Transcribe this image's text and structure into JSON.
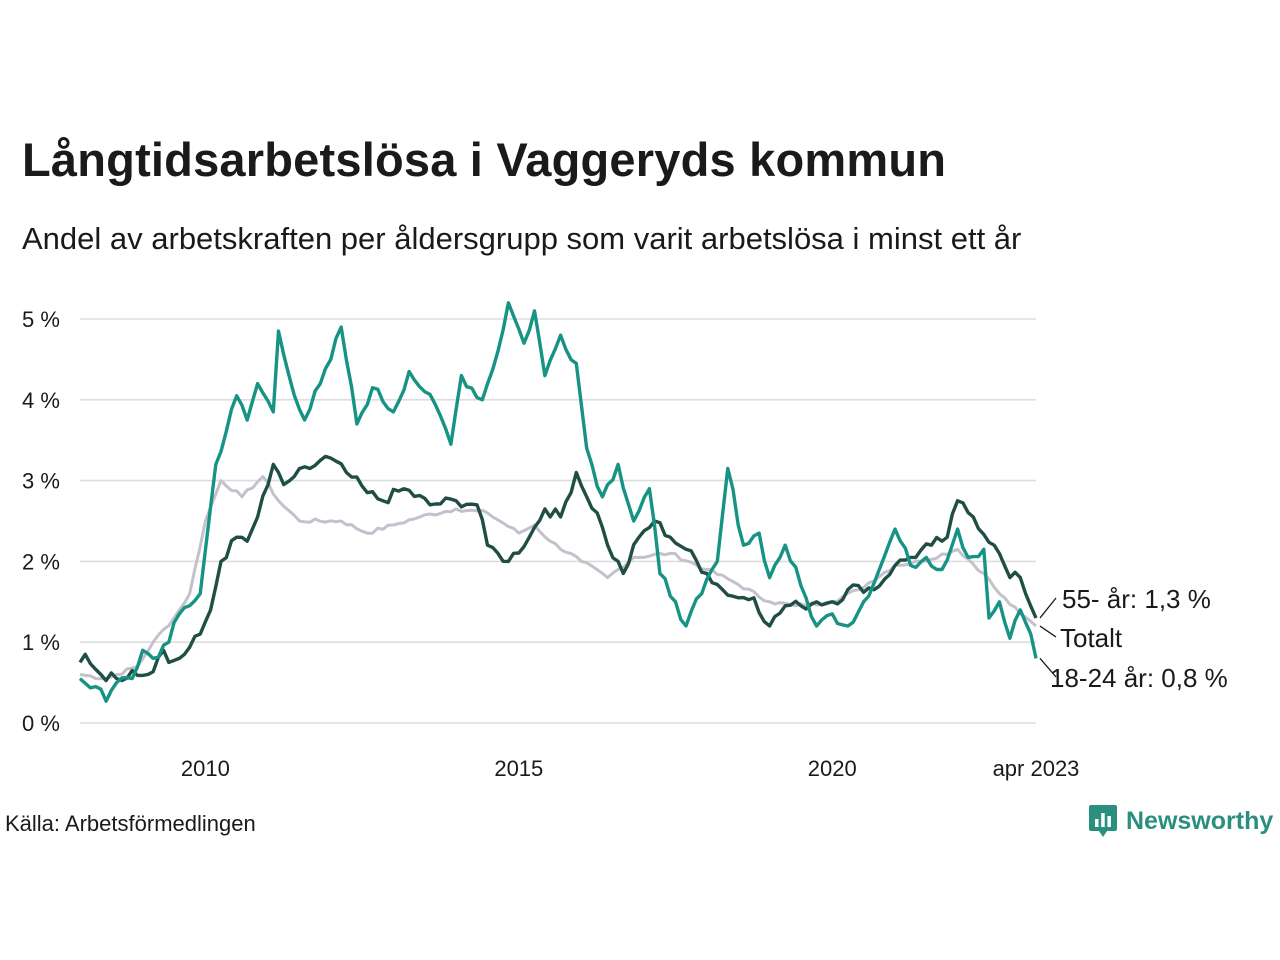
{
  "header": {
    "title": "Långtidsarbetslösa i Vaggeryds kommun",
    "subtitle": "Andel av arbetskraften per åldersgrupp som varit arbetslösa i minst ett år"
  },
  "footer": {
    "source": "Källa: Arbetsförmedlingen",
    "brand": "Newsworthy",
    "brand_icon": "bar-chart-icon",
    "brand_color": "#2a8f7f"
  },
  "chart_data": {
    "type": "line",
    "title": "Långtidsarbetslösa i Vaggeryds kommun",
    "subtitle": "Andel av arbetskraften per åldersgrupp som varit arbetslösa i minst ett år",
    "x_start": "2008-01",
    "x_end": "2023-04",
    "x_interval": "monthly",
    "x_ticks": [
      {
        "label": "2010",
        "value": 2010.0
      },
      {
        "label": "2015",
        "value": 2015.0
      },
      {
        "label": "2020",
        "value": 2020.0
      },
      {
        "label": "apr 2023",
        "value": 2023.25
      }
    ],
    "y_ticks": [
      {
        "label": "0 %",
        "value": 0
      },
      {
        "label": "1 %",
        "value": 1
      },
      {
        "label": "2 %",
        "value": 2
      },
      {
        "label": "3 %",
        "value": 3
      },
      {
        "label": "4 %",
        "value": 4
      },
      {
        "label": "5 %",
        "value": 5
      }
    ],
    "ylim": [
      0,
      5.2
    ],
    "grid": "horizontal",
    "legend": "direct labels at line ends",
    "series": [
      {
        "name": "Totalt",
        "end_label": "Totalt",
        "color": "#c4c1cc",
        "knots": [
          [
            "2008-01",
            0.6
          ],
          [
            "2008-06",
            0.55
          ],
          [
            "2008-12",
            0.7
          ],
          [
            "2009-03",
            1.0
          ],
          [
            "2009-07",
            1.3
          ],
          [
            "2009-10",
            1.6
          ],
          [
            "2010-01",
            2.5
          ],
          [
            "2010-04",
            3.0
          ],
          [
            "2010-08",
            2.8
          ],
          [
            "2010-12",
            3.05
          ],
          [
            "2011-03",
            2.75
          ],
          [
            "2011-07",
            2.5
          ],
          [
            "2012-03",
            2.5
          ],
          [
            "2012-08",
            2.35
          ],
          [
            "2013-01",
            2.45
          ],
          [
            "2013-06",
            2.55
          ],
          [
            "2014-01",
            2.65
          ],
          [
            "2014-07",
            2.6
          ],
          [
            "2015-01",
            2.35
          ],
          [
            "2015-04",
            2.45
          ],
          [
            "2015-07",
            2.25
          ],
          [
            "2016-01",
            2.0
          ],
          [
            "2016-06",
            1.8
          ],
          [
            "2016-11",
            2.05
          ],
          [
            "2017-06",
            2.1
          ],
          [
            "2018-01",
            1.9
          ],
          [
            "2018-06",
            1.75
          ],
          [
            "2019-01",
            1.5
          ],
          [
            "2019-06",
            1.45
          ],
          [
            "2020-01",
            1.5
          ],
          [
            "2020-06",
            1.65
          ],
          [
            "2021-01",
            1.95
          ],
          [
            "2021-06",
            2.0
          ],
          [
            "2022-01",
            2.15
          ],
          [
            "2022-06",
            1.85
          ],
          [
            "2022-09",
            1.6
          ],
          [
            "2023-01",
            1.35
          ],
          [
            "2023-04",
            1.2
          ]
        ]
      },
      {
        "name": "55- år",
        "end_label": "55- år: 1,3 %",
        "color": "#1f4e45",
        "knots": [
          [
            "2008-01",
            0.75
          ],
          [
            "2008-02",
            0.85
          ],
          [
            "2008-05",
            0.6
          ],
          [
            "2008-08",
            0.55
          ],
          [
            "2008-11",
            0.65
          ],
          [
            "2009-02",
            0.6
          ],
          [
            "2009-05",
            0.9
          ],
          [
            "2009-06",
            0.75
          ],
          [
            "2009-09",
            0.85
          ],
          [
            "2009-12",
            1.1
          ],
          [
            "2010-02",
            1.4
          ],
          [
            "2010-04",
            2.0
          ],
          [
            "2010-07",
            2.3
          ],
          [
            "2010-09",
            2.25
          ],
          [
            "2010-11",
            2.55
          ],
          [
            "2011-01",
            2.95
          ],
          [
            "2011-02",
            3.2
          ],
          [
            "2011-04",
            2.95
          ],
          [
            "2011-06",
            3.05
          ],
          [
            "2011-09",
            3.15
          ],
          [
            "2011-12",
            3.3
          ],
          [
            "2012-04",
            3.1
          ],
          [
            "2012-08",
            2.85
          ],
          [
            "2012-11",
            2.75
          ],
          [
            "2013-03",
            2.9
          ],
          [
            "2013-08",
            2.7
          ],
          [
            "2014-01",
            2.75
          ],
          [
            "2014-05",
            2.7
          ],
          [
            "2014-07",
            2.2
          ],
          [
            "2014-09",
            2.1
          ],
          [
            "2014-11",
            2.0
          ],
          [
            "2015-03",
            2.3
          ],
          [
            "2015-06",
            2.65
          ],
          [
            "2015-09",
            2.55
          ],
          [
            "2015-12",
            3.1
          ],
          [
            "2016-02",
            2.8
          ],
          [
            "2016-04",
            2.6
          ],
          [
            "2016-06",
            2.2
          ],
          [
            "2016-09",
            1.85
          ],
          [
            "2016-12",
            2.3
          ],
          [
            "2017-03",
            2.5
          ],
          [
            "2017-06",
            2.3
          ],
          [
            "2017-09",
            2.15
          ],
          [
            "2018-01",
            1.85
          ],
          [
            "2018-04",
            1.65
          ],
          [
            "2018-07",
            1.55
          ],
          [
            "2018-10",
            1.55
          ],
          [
            "2019-01",
            1.2
          ],
          [
            "2019-04",
            1.45
          ],
          [
            "2019-07",
            1.45
          ],
          [
            "2019-10",
            1.5
          ],
          [
            "2020-01",
            1.5
          ],
          [
            "2020-06",
            1.7
          ],
          [
            "2020-09",
            1.65
          ],
          [
            "2021-01",
            1.95
          ],
          [
            "2021-04",
            2.05
          ],
          [
            "2021-08",
            2.2
          ],
          [
            "2021-11",
            2.3
          ],
          [
            "2022-01",
            2.75
          ],
          [
            "2022-04",
            2.55
          ],
          [
            "2022-08",
            2.2
          ],
          [
            "2022-11",
            1.8
          ],
          [
            "2023-01",
            1.8
          ],
          [
            "2023-04",
            1.3
          ]
        ]
      },
      {
        "name": "18-24 år",
        "end_label": "18-24 år: 0,8 %",
        "color": "#179384",
        "knots": [
          [
            "2008-01",
            0.55
          ],
          [
            "2008-04",
            0.45
          ],
          [
            "2008-06",
            0.27
          ],
          [
            "2008-08",
            0.5
          ],
          [
            "2008-11",
            0.55
          ],
          [
            "2009-01",
            0.9
          ],
          [
            "2009-03",
            0.8
          ],
          [
            "2009-06",
            1.0
          ],
          [
            "2009-08",
            1.35
          ],
          [
            "2009-12",
            1.6
          ],
          [
            "2010-03",
            3.2
          ],
          [
            "2010-07",
            4.05
          ],
          [
            "2010-09",
            3.75
          ],
          [
            "2010-11",
            4.2
          ],
          [
            "2011-02",
            3.85
          ],
          [
            "2011-03",
            4.85
          ],
          [
            "2011-05",
            4.3
          ],
          [
            "2011-08",
            3.75
          ],
          [
            "2011-11",
            4.2
          ],
          [
            "2012-01",
            4.5
          ],
          [
            "2012-03",
            4.9
          ],
          [
            "2012-06",
            3.7
          ],
          [
            "2012-09",
            4.15
          ],
          [
            "2013-01",
            3.85
          ],
          [
            "2013-04",
            4.35
          ],
          [
            "2013-07",
            4.1
          ],
          [
            "2013-10",
            3.8
          ],
          [
            "2013-12",
            3.45
          ],
          [
            "2014-02",
            4.3
          ],
          [
            "2014-06",
            4.0
          ],
          [
            "2014-09",
            4.6
          ],
          [
            "2014-11",
            5.2
          ],
          [
            "2015-02",
            4.7
          ],
          [
            "2015-04",
            5.1
          ],
          [
            "2015-06",
            4.3
          ],
          [
            "2015-09",
            4.8
          ],
          [
            "2015-12",
            4.45
          ],
          [
            "2016-02",
            3.4
          ],
          [
            "2016-05",
            2.8
          ],
          [
            "2016-08",
            3.2
          ],
          [
            "2016-11",
            2.5
          ],
          [
            "2017-02",
            2.9
          ],
          [
            "2017-04",
            1.85
          ],
          [
            "2017-07",
            1.5
          ],
          [
            "2017-09",
            1.2
          ],
          [
            "2017-12",
            1.6
          ],
          [
            "2018-03",
            2.0
          ],
          [
            "2018-05",
            3.15
          ],
          [
            "2018-08",
            2.2
          ],
          [
            "2018-11",
            2.35
          ],
          [
            "2019-01",
            1.8
          ],
          [
            "2019-04",
            2.2
          ],
          [
            "2019-07",
            1.7
          ],
          [
            "2019-10",
            1.2
          ],
          [
            "2020-01",
            1.35
          ],
          [
            "2020-04",
            1.2
          ],
          [
            "2020-07",
            1.5
          ],
          [
            "2020-10",
            1.9
          ],
          [
            "2021-01",
            2.4
          ],
          [
            "2021-04",
            1.95
          ],
          [
            "2021-07",
            2.05
          ],
          [
            "2021-10",
            1.9
          ],
          [
            "2022-01",
            2.4
          ],
          [
            "2022-03",
            2.05
          ],
          [
            "2022-06",
            2.15
          ],
          [
            "2022-07",
            1.3
          ],
          [
            "2022-09",
            1.5
          ],
          [
            "2022-11",
            1.05
          ],
          [
            "2023-01",
            1.4
          ],
          [
            "2023-03",
            1.1
          ],
          [
            "2023-04",
            0.8
          ]
        ]
      }
    ]
  }
}
